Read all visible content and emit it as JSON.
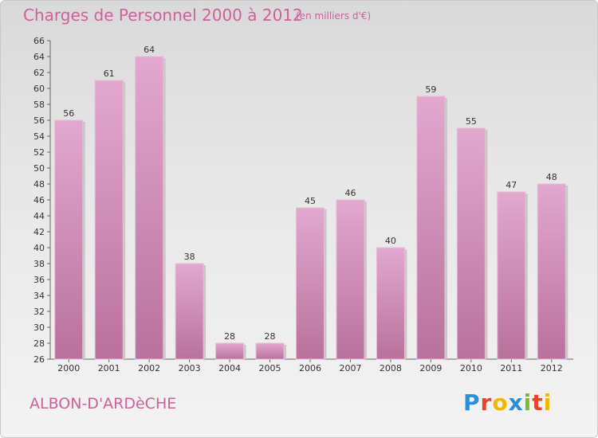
{
  "title": "Charges de Personnel 2000 à 2012",
  "subtitle": "(en milliers d'€)",
  "place": "ALBON-D'ARDèCHE",
  "logo": {
    "letters": [
      "P",
      "r",
      "o",
      "x",
      "i",
      "t",
      "i"
    ],
    "colors": [
      "#2a8fd6",
      "#e8442a",
      "#f2b600",
      "#2a8fd6",
      "#7dbb2e",
      "#e8442a",
      "#f2b600"
    ]
  },
  "colors": {
    "bar_top": "#e2a8cf",
    "bar_bottom": "#b8729c",
    "accent": "#d0609a"
  },
  "chart_data": {
    "type": "bar",
    "categories": [
      "2000",
      "2001",
      "2002",
      "2003",
      "2004",
      "2005",
      "2006",
      "2007",
      "2008",
      "2009",
      "2010",
      "2011",
      "2012"
    ],
    "values": [
      56,
      61,
      64,
      38,
      28,
      28,
      45,
      46,
      40,
      59,
      55,
      47,
      48
    ],
    "ylim": [
      26,
      66
    ],
    "yticks": [
      26,
      28,
      30,
      32,
      34,
      36,
      38,
      40,
      42,
      44,
      46,
      48,
      50,
      52,
      54,
      56,
      58,
      60,
      62,
      64,
      66
    ],
    "grid": false
  }
}
